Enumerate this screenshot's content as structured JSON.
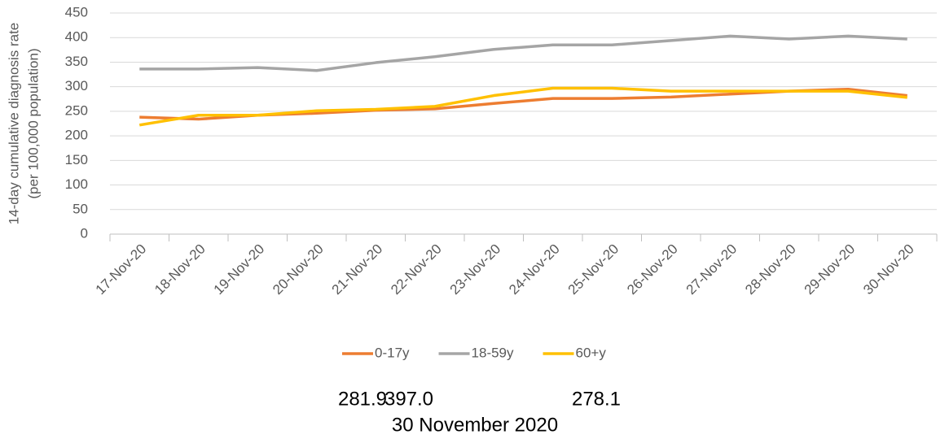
{
  "chart_data": {
    "type": "line",
    "ylabel": [
      "14-day cumulative diagnosis rate",
      "(per 100,000 population)"
    ],
    "categories": [
      "17-Nov-20",
      "18-Nov-20",
      "19-Nov-20",
      "20-Nov-20",
      "21-Nov-20",
      "22-Nov-20",
      "23-Nov-20",
      "24-Nov-20",
      "25-Nov-20",
      "26-Nov-20",
      "27-Nov-20",
      "28-Nov-20",
      "29-Nov-20",
      "30-Nov-20"
    ],
    "series": [
      {
        "name": "0-17y",
        "color": "#ED7D31",
        "values": [
          238,
          234,
          242,
          246,
          252,
          255,
          266,
          276,
          276,
          279,
          285,
          291,
          295,
          281.9
        ]
      },
      {
        "name": "18-59y",
        "color": "#A5A5A5",
        "values": [
          336,
          336,
          339,
          333,
          349,
          361,
          376,
          385,
          385,
          394,
          403,
          397,
          403,
          397.0
        ]
      },
      {
        "name": "60+y",
        "color": "#FFC000",
        "values": [
          222,
          242,
          242,
          251,
          254,
          260,
          282,
          297,
          297,
          291,
          291,
          291,
          291,
          278.1
        ]
      }
    ],
    "ylim": [
      0,
      450
    ],
    "yticks": [
      0,
      50,
      100,
      150,
      200,
      250,
      300,
      350,
      400,
      450
    ],
    "grid": true,
    "legend": "bottom",
    "annotations": [
      "281.9",
      "397.0",
      "278.1",
      "30 November 2020"
    ]
  }
}
